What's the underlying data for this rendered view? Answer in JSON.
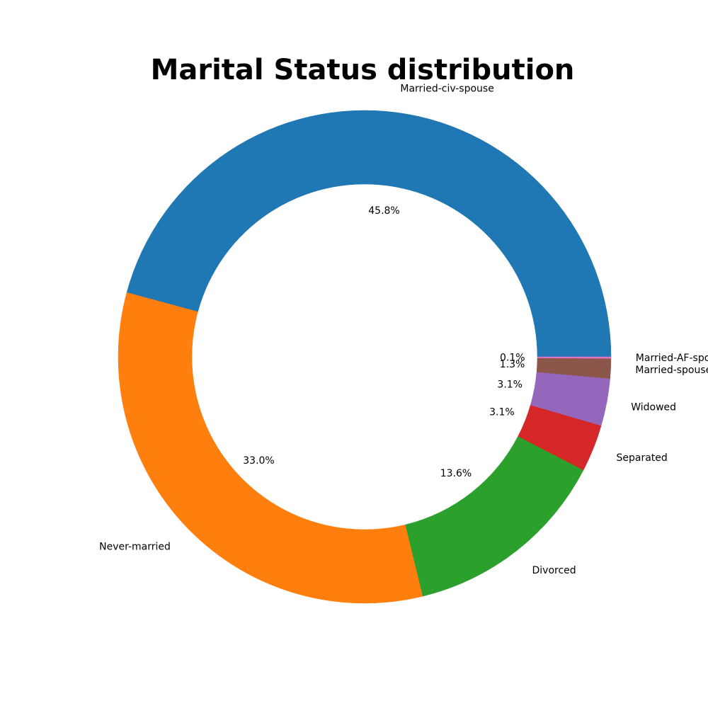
{
  "chart_data": {
    "type": "pie",
    "style": "donut",
    "title": "Marital Status distribution",
    "start_angle_deg": 0,
    "direction": "counterclockwise",
    "slices": [
      {
        "label": "Married-civ-spouse",
        "value": 45.8,
        "pct_label": "45.8%",
        "color": "#1f77b4"
      },
      {
        "label": "Never-married",
        "value": 33.0,
        "pct_label": "33.0%",
        "color": "#ff7f0e"
      },
      {
        "label": "Divorced",
        "value": 13.6,
        "pct_label": "13.6%",
        "color": "#2ca02c"
      },
      {
        "label": "Separated",
        "value": 3.1,
        "pct_label": "3.1%",
        "color": "#d62728"
      },
      {
        "label": "Widowed",
        "value": 3.1,
        "pct_label": "3.1%",
        "color": "#9467bd"
      },
      {
        "label": "Married-spouse-absent",
        "value": 1.3,
        "pct_label": "1.3%",
        "color": "#8c564b"
      },
      {
        "label": "Married-AF-spouse",
        "value": 0.1,
        "pct_label": "0.1%",
        "color": "#e377c2"
      }
    ]
  }
}
